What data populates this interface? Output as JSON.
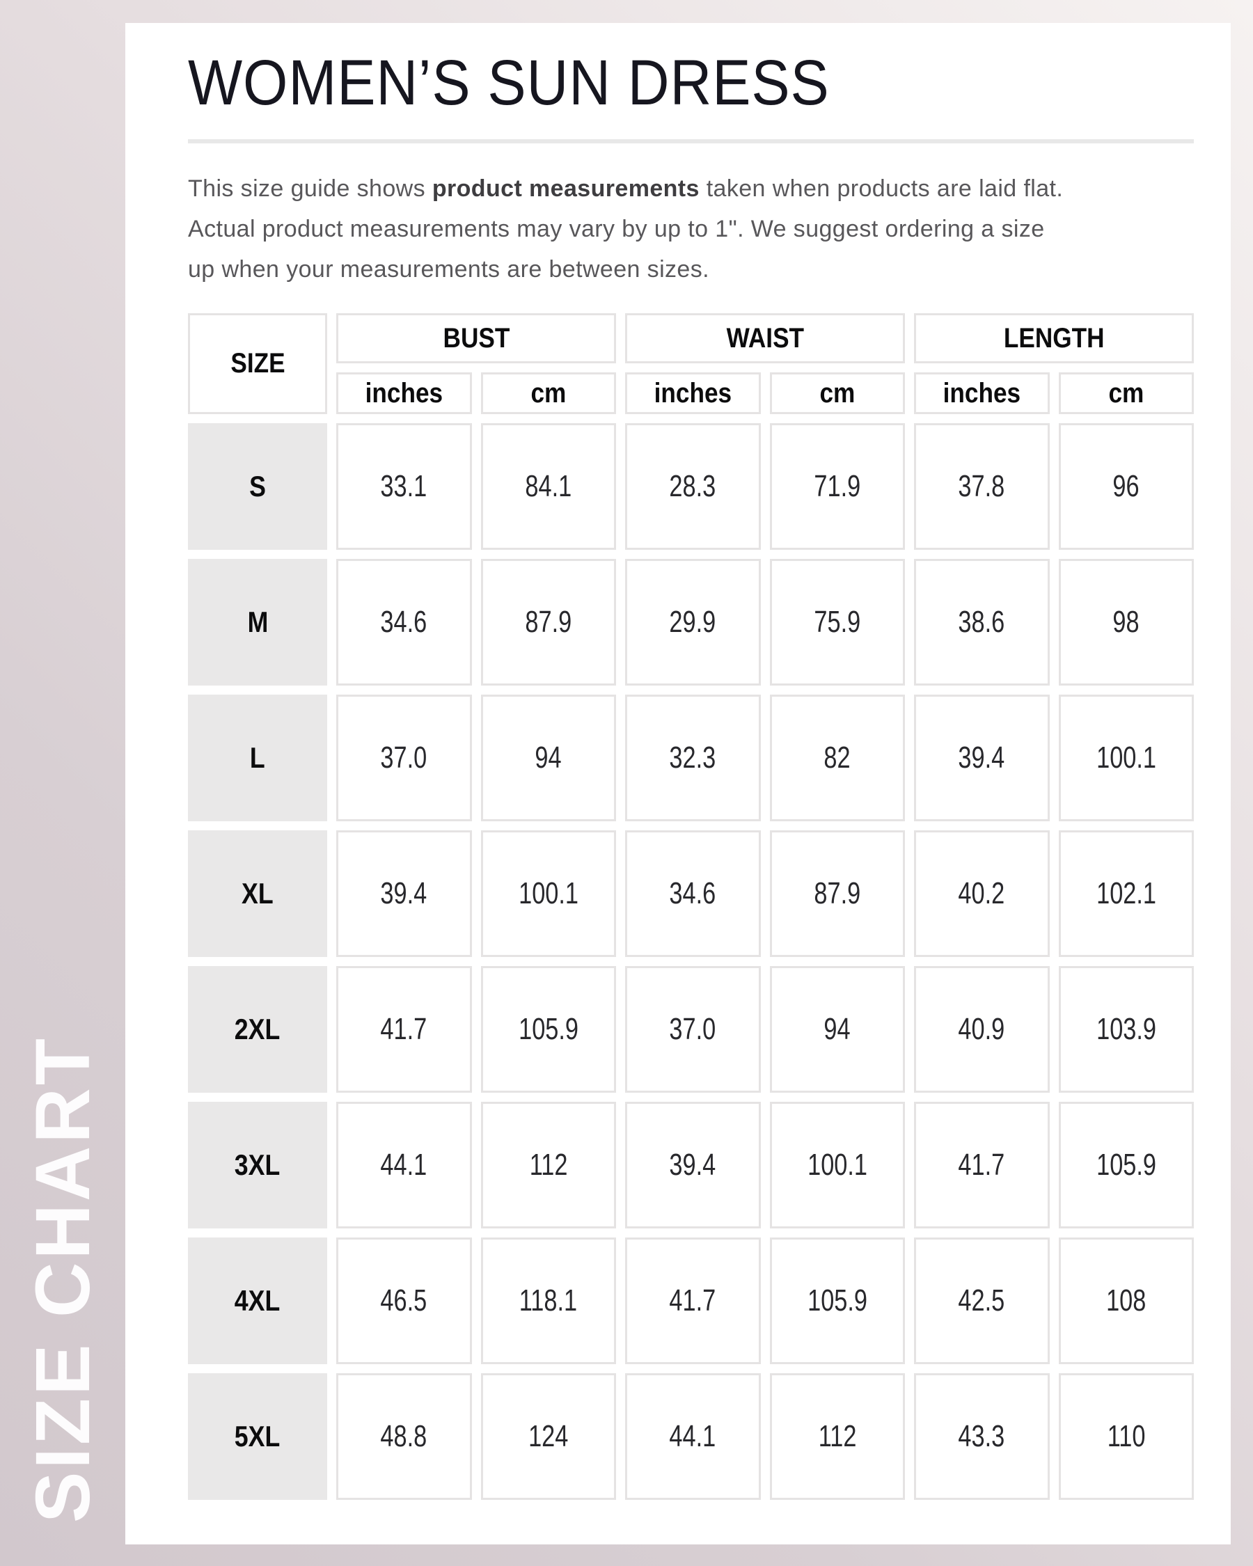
{
  "page": {
    "sidebar_label": "SIZE CHART",
    "title": "WOMEN’S SUN DRESS"
  },
  "intro": {
    "line1_before": "This size guide shows ",
    "line1_bold": "product measurements",
    "line1_after": " taken when products are laid flat.",
    "line2": "Actual product measurements may vary by up to 1\". We suggest ordering a size",
    "line3": "up when your measurements are between sizes."
  },
  "table": {
    "size_header": "SIZE",
    "groups": [
      "BUST",
      "WAIST",
      "LENGTH"
    ],
    "units": [
      "inches",
      "cm",
      "inches",
      "cm",
      "inches",
      "cm"
    ],
    "rows": [
      {
        "size": "S",
        "values": [
          "33.1",
          "84.1",
          "28.3",
          "71.9",
          "37.8",
          "96"
        ]
      },
      {
        "size": "M",
        "values": [
          "34.6",
          "87.9",
          "29.9",
          "75.9",
          "38.6",
          "98"
        ]
      },
      {
        "size": "L",
        "values": [
          "37.0",
          "94",
          "32.3",
          "82",
          "39.4",
          "100.1"
        ]
      },
      {
        "size": "XL",
        "values": [
          "39.4",
          "100.1",
          "34.6",
          "87.9",
          "40.2",
          "102.1"
        ]
      },
      {
        "size": "2XL",
        "values": [
          "41.7",
          "105.9",
          "37.0",
          "94",
          "40.9",
          "103.9"
        ]
      },
      {
        "size": "3XL",
        "values": [
          "44.1",
          "112",
          "39.4",
          "100.1",
          "41.7",
          "105.9"
        ]
      },
      {
        "size": "4XL",
        "values": [
          "46.5",
          "118.1",
          "41.7",
          "105.9",
          "42.5",
          "108"
        ]
      },
      {
        "size": "5XL",
        "values": [
          "48.8",
          "124",
          "44.1",
          "112",
          "43.3",
          "110"
        ]
      }
    ]
  },
  "colors": {
    "background_left": "#d2c8cd",
    "background_right": "#f6f2f1",
    "card": "#ffffff",
    "title_text": "#16161f",
    "body_text": "#58575a",
    "divider": "#e8e8e8",
    "cell_border": "#e5e3e3",
    "size_cell_bg": "#e9e8e8",
    "header_text": "#0c0c0d",
    "sidebar_text": "#fdfcfd"
  }
}
